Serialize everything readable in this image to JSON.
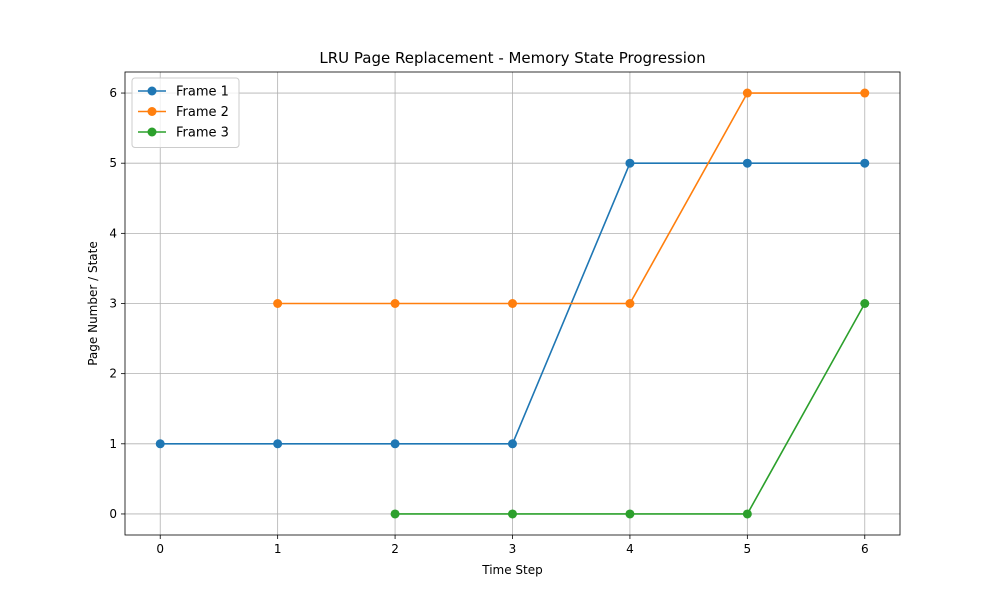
{
  "chart_data": {
    "type": "line",
    "title": "LRU Page Replacement - Memory State Progression",
    "xlabel": "Time Step",
    "ylabel": "Page Number / State",
    "xlim": [
      -0.3,
      6.3
    ],
    "ylim": [
      -0.3,
      6.3
    ],
    "xticks": [
      0,
      1,
      2,
      3,
      4,
      5,
      6
    ],
    "yticks": [
      0,
      1,
      2,
      3,
      4,
      5,
      6
    ],
    "grid": true,
    "legend_position": "top-left",
    "series": [
      {
        "name": "Frame 1",
        "color": "#1f77b4",
        "x": [
          0,
          1,
          2,
          3,
          4,
          5,
          6
        ],
        "y": [
          1,
          1,
          1,
          1,
          5,
          5,
          5
        ]
      },
      {
        "name": "Frame 2",
        "color": "#ff7f0e",
        "x": [
          1,
          2,
          3,
          4,
          5,
          6
        ],
        "y": [
          3,
          3,
          3,
          3,
          6,
          6
        ]
      },
      {
        "name": "Frame 3",
        "color": "#2ca02c",
        "x": [
          2,
          3,
          4,
          5,
          6
        ],
        "y": [
          0,
          0,
          0,
          0,
          3
        ]
      }
    ]
  }
}
